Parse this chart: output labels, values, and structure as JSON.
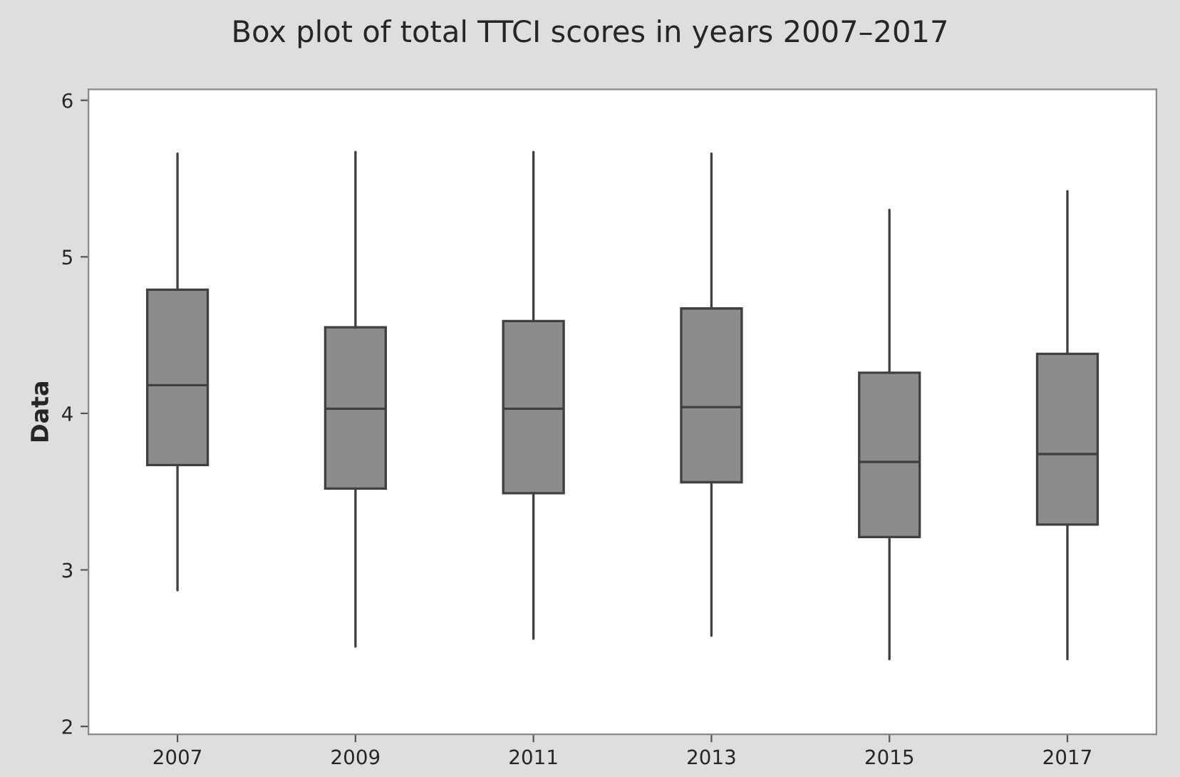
{
  "chart_data": {
    "type": "box",
    "title": "Box plot of total TTCI scores in years 2007–2017",
    "ylabel": "Data",
    "categories": [
      "2007",
      "2009",
      "2011",
      "2013",
      "2015",
      "2017"
    ],
    "boxes": [
      {
        "low": 2.87,
        "q1": 3.67,
        "median": 4.18,
        "q3": 4.79,
        "high": 5.66
      },
      {
        "low": 2.51,
        "q1": 3.52,
        "median": 4.03,
        "q3": 4.55,
        "high": 5.67
      },
      {
        "low": 2.56,
        "q1": 3.49,
        "median": 4.03,
        "q3": 4.59,
        "high": 5.67
      },
      {
        "low": 2.58,
        "q1": 3.56,
        "median": 4.04,
        "q3": 4.67,
        "high": 5.66
      },
      {
        "low": 2.43,
        "q1": 3.21,
        "median": 3.69,
        "q3": 4.26,
        "high": 5.3
      },
      {
        "low": 2.43,
        "q1": 3.29,
        "median": 3.74,
        "q3": 4.38,
        "high": 5.42
      }
    ],
    "color": "#8c8c8c",
    "ylim": [
      1.95,
      6.07
    ],
    "yticks": [
      2,
      3,
      4,
      5,
      6
    ],
    "grid": false,
    "legend": false
  }
}
